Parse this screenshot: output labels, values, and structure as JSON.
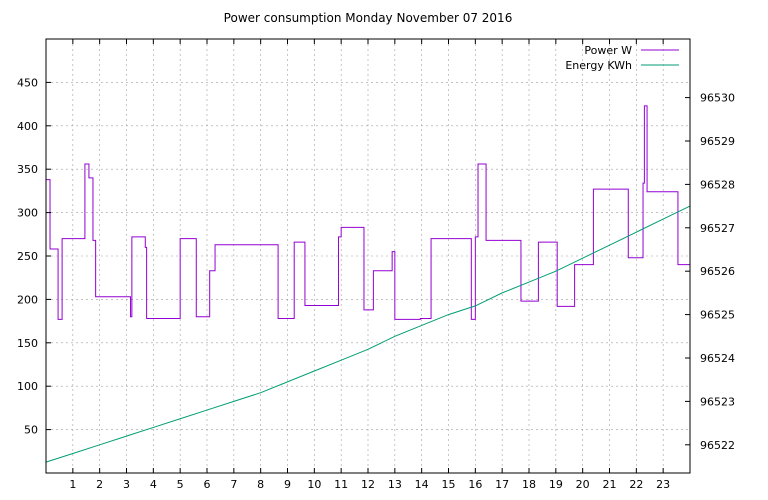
{
  "chart_data": {
    "type": "line",
    "title": "Power consumption Monday November 07 2016",
    "xlim": [
      0,
      24
    ],
    "x_ticks": [
      1,
      2,
      3,
      4,
      5,
      6,
      7,
      8,
      9,
      10,
      11,
      12,
      13,
      14,
      15,
      16,
      17,
      18,
      19,
      20,
      21,
      22,
      23
    ],
    "ylim": [
      0,
      500
    ],
    "y_ticks": [
      50,
      100,
      150,
      200,
      250,
      300,
      350,
      400,
      450
    ],
    "y2lim": [
      96521.35,
      96531.35
    ],
    "y2_ticks": [
      96522,
      96523,
      96524,
      96525,
      96526,
      96527,
      96528,
      96529,
      96530
    ],
    "grid": true,
    "legend_position": "top-right",
    "series": [
      {
        "name": "Power W",
        "axis": "left",
        "color": "#9400d3",
        "step": true,
        "x": [
          0,
          0.15,
          0.25,
          0.45,
          0.6,
          0.85,
          1.45,
          1.6,
          1.75,
          1.85,
          2.0,
          3.15,
          3.2,
          3.7,
          3.75,
          5.0,
          5.5,
          5.6,
          6.1,
          6.25,
          6.3,
          7.35,
          8.65,
          9.25,
          9.65,
          10.5,
          10.9,
          11.0,
          11.85,
          12.2,
          12.9,
          13.0,
          13.6,
          13.95,
          14.35,
          15.85,
          16.0,
          16.1,
          16.4,
          17.05,
          17.7,
          18.35,
          19.05,
          19.7,
          20.4,
          21.7,
          22.25,
          22.3,
          22.4,
          23.15,
          23.55,
          24
        ],
        "y": [
          338,
          258,
          258,
          177,
          270,
          270,
          356,
          340,
          268,
          203,
          203,
          180,
          272,
          260,
          178,
          270,
          270,
          180,
          233,
          233,
          263,
          263,
          178,
          266,
          193,
          193,
          272,
          283,
          188,
          233,
          255,
          177,
          177,
          178,
          270,
          177,
          272,
          356,
          268,
          268,
          198,
          266,
          192,
          240,
          327,
          248,
          334,
          423,
          324,
          324,
          240,
          300
        ]
      },
      {
        "name": "Energy KWh",
        "axis": "right",
        "color": "#009e73",
        "step": false,
        "x": [
          0,
          1,
          2,
          3,
          4,
          5,
          6,
          7,
          8,
          9,
          10,
          11,
          12,
          13,
          14,
          15,
          16,
          17,
          18,
          19,
          20,
          21,
          22,
          23,
          24
        ],
        "y": [
          96521.6,
          96521.8,
          96522.0,
          96522.2,
          96522.4,
          96522.6,
          96522.8,
          96523.0,
          96523.2,
          96523.45,
          96523.7,
          96523.95,
          96524.2,
          96524.5,
          96524.75,
          96525.0,
          96525.2,
          96525.5,
          96525.75,
          96526.0,
          96526.3,
          96526.6,
          96526.9,
          96527.2,
          96527.5
        ]
      }
    ]
  }
}
